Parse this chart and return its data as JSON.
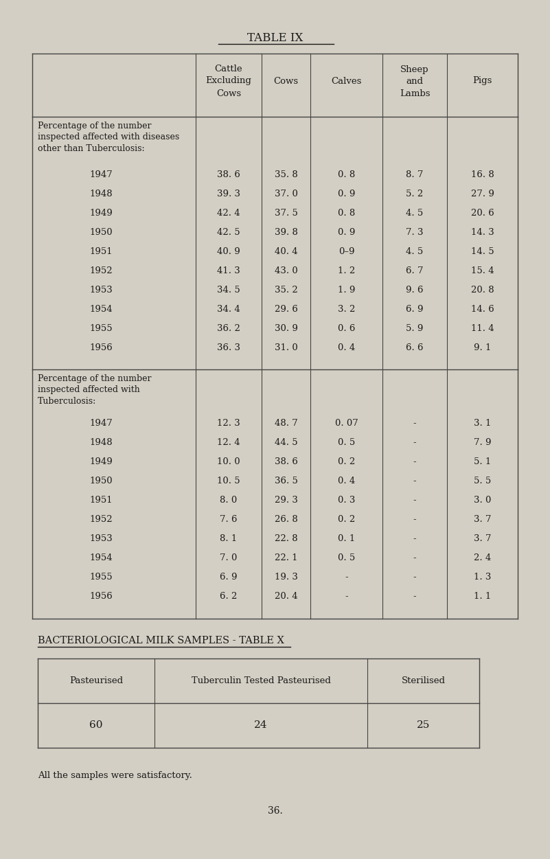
{
  "bg_color": "#d4cfc4",
  "title_ix": "TABLE IX",
  "title_x": "BACTERIOLOGICAL MILK SAMPLES - TABLE X",
  "col_headers_line1": [
    "Cattle",
    "Cows",
    "Calves",
    "Sheep",
    "Pigs"
  ],
  "col_headers_line2": [
    "Excluding",
    "",
    "",
    "and",
    ""
  ],
  "col_headers_line3": [
    "Cows",
    "",
    "",
    "Lambs",
    ""
  ],
  "section1_label": [
    "Percentage of the number",
    "inspected affected with diseases",
    "other than Tuberculosis:"
  ],
  "section1_years": [
    "1947",
    "1948",
    "1949",
    "1950",
    "1951",
    "1952",
    "1953",
    "1954",
    "1955",
    "1956"
  ],
  "section1_data": [
    [
      "38. 6",
      "35. 8",
      "0. 8",
      "8. 7",
      "16. 8"
    ],
    [
      "39. 3",
      "37. 0",
      "0. 9",
      "5. 2",
      "27. 9"
    ],
    [
      "42. 4",
      "37. 5",
      "0. 8",
      "4. 5",
      "20. 6"
    ],
    [
      "42. 5",
      "39. 8",
      "0. 9",
      "7. 3",
      "14. 3"
    ],
    [
      "40. 9",
      "40. 4",
      "0–9",
      "4. 5",
      "14. 5"
    ],
    [
      "41. 3",
      "43. 0",
      "1. 2",
      "6. 7",
      "15. 4"
    ],
    [
      "34. 5",
      "35. 2",
      "1. 9",
      "9. 6",
      "20. 8"
    ],
    [
      "34. 4",
      "29. 6",
      "3. 2",
      "6. 9",
      "14. 6"
    ],
    [
      "36. 2",
      "30. 9",
      "0. 6",
      "5. 9",
      "11. 4"
    ],
    [
      "36. 3",
      "31. 0",
      "0. 4",
      "6. 6",
      "9. 1"
    ]
  ],
  "section2_label": [
    "Percentage of the number",
    "inspected affected with",
    "Tuberculosis:"
  ],
  "section2_years": [
    "1947",
    "1948",
    "1949",
    "1950",
    "1951",
    "1952",
    "1953",
    "1954",
    "1955",
    "1956"
  ],
  "section2_data": [
    [
      "12. 3",
      "48. 7",
      "0. 07",
      "-",
      "3. 1"
    ],
    [
      "12. 4",
      "44. 5",
      "0. 5",
      "-",
      "7. 9"
    ],
    [
      "10. 0",
      "38. 6",
      "0. 2",
      "-",
      "5. 1"
    ],
    [
      "10. 5",
      "36. 5",
      "0. 4",
      "-",
      "5. 5"
    ],
    [
      "8. 0",
      "29. 3",
      "0. 3",
      "-",
      "3. 0"
    ],
    [
      "7. 6",
      "26. 8",
      "0. 2",
      "-",
      "3. 7"
    ],
    [
      "8. 1",
      "22. 8",
      "0. 1",
      "-",
      "3. 7"
    ],
    [
      "7. 0",
      "22. 1",
      "0. 5",
      "-",
      "2. 4"
    ],
    [
      "6. 9",
      "19. 3",
      "-",
      "-",
      "1. 3"
    ],
    [
      "6. 2",
      "20. 4",
      "-",
      "-",
      "1. 1"
    ]
  ],
  "table_x_headers": [
    "Pasteurised",
    "Tuberculin Tested Pasteurised",
    "Sterilised"
  ],
  "table_x_data": [
    "60",
    "24",
    "25"
  ],
  "note": "All the samples were satisfactory.",
  "page_num": "36."
}
